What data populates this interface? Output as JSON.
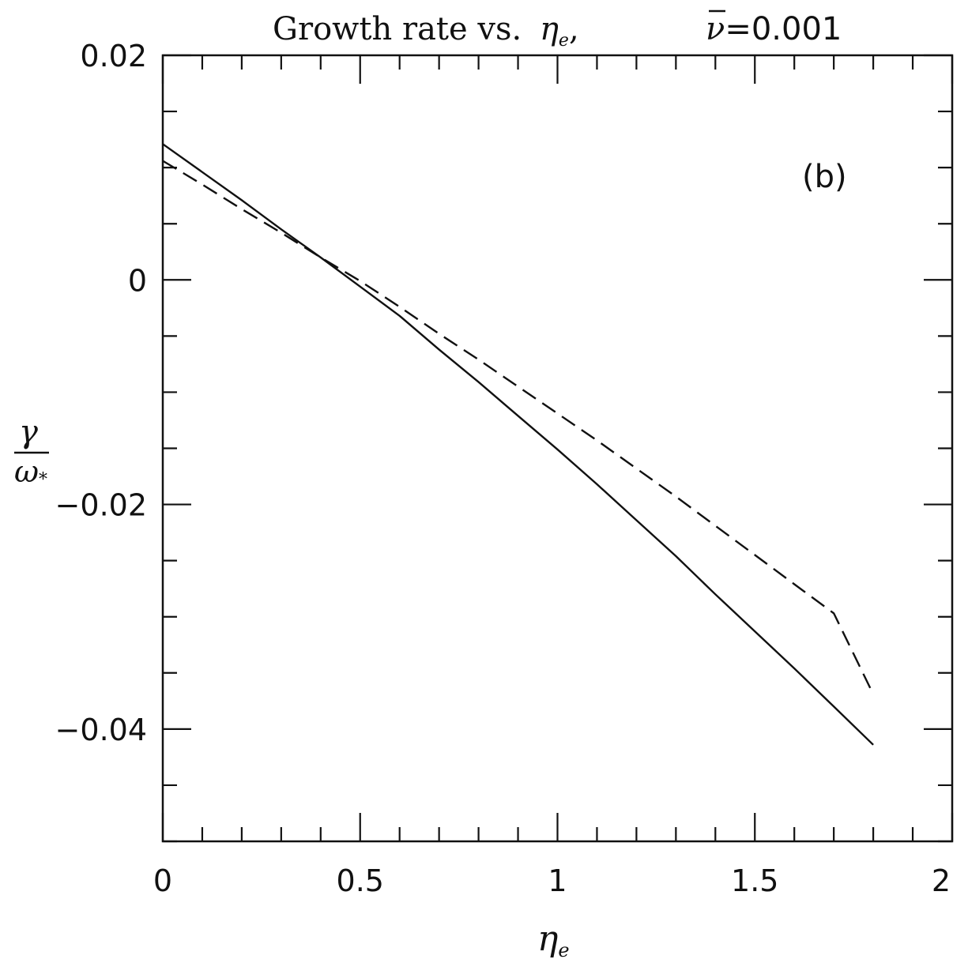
{
  "chart_data": {
    "type": "line",
    "title_prefix": "Growth rate vs.",
    "title_eta_symbol": "η",
    "title_eta_subscript": "e",
    "title_separator": ",",
    "title_nu_symbol": "ν",
    "title_nu_value": "=0.001",
    "panel_label": "(b)",
    "xlabel_symbol": "η",
    "xlabel_subscript": "e",
    "ylabel_numerator": "γ",
    "ylabel_denominator_symbol": "ω",
    "ylabel_denominator_subscript": "*",
    "xlim": [
      0,
      2
    ],
    "ylim": [
      -0.05,
      0.02
    ],
    "x_ticks": [
      {
        "value": 0,
        "label": "0"
      },
      {
        "value": 0.5,
        "label": "0.5"
      },
      {
        "value": 1,
        "label": "1"
      },
      {
        "value": 1.5,
        "label": "1.5"
      },
      {
        "value": 2,
        "label": "2"
      }
    ],
    "y_ticks": [
      {
        "value": 0.02,
        "label": "0.02"
      },
      {
        "value": 0,
        "label": "0"
      },
      {
        "value": -0.02,
        "label": "−0.02"
      },
      {
        "value": -0.04,
        "label": "−0.04"
      }
    ],
    "x_minor_step": 0.1,
    "y_minor_step": 0.005,
    "grid": false,
    "series": [
      {
        "style": "solid",
        "x": [
          0.0,
          0.1,
          0.2,
          0.3,
          0.4,
          0.5,
          0.6,
          0.7,
          0.8,
          0.9,
          1.0,
          1.1,
          1.2,
          1.3,
          1.4,
          1.5,
          1.6,
          1.7,
          1.8
        ],
        "y": [
          0.0121,
          0.0096,
          0.0071,
          0.0045,
          0.002,
          -0.0006,
          -0.0032,
          -0.0062,
          -0.0091,
          -0.0121,
          -0.0151,
          -0.0182,
          -0.0214,
          -0.0246,
          -0.028,
          -0.0313,
          -0.0346,
          -0.038,
          -0.0414
        ]
      },
      {
        "style": "dashed",
        "x": [
          0.0,
          0.1,
          0.2,
          0.3,
          0.4,
          0.5,
          0.6,
          0.7,
          0.8,
          0.9,
          1.0,
          1.1,
          1.2,
          1.3,
          1.4,
          1.5,
          1.6,
          1.7,
          1.8
        ],
        "y": [
          0.0106,
          0.0085,
          0.0063,
          0.0042,
          0.002,
          -0.0001,
          -0.0024,
          -0.0048,
          -0.0071,
          -0.0095,
          -0.0119,
          -0.0143,
          -0.0168,
          -0.0193,
          -0.0219,
          -0.0245,
          -0.0271,
          -0.0297,
          -0.0369
        ]
      }
    ]
  }
}
